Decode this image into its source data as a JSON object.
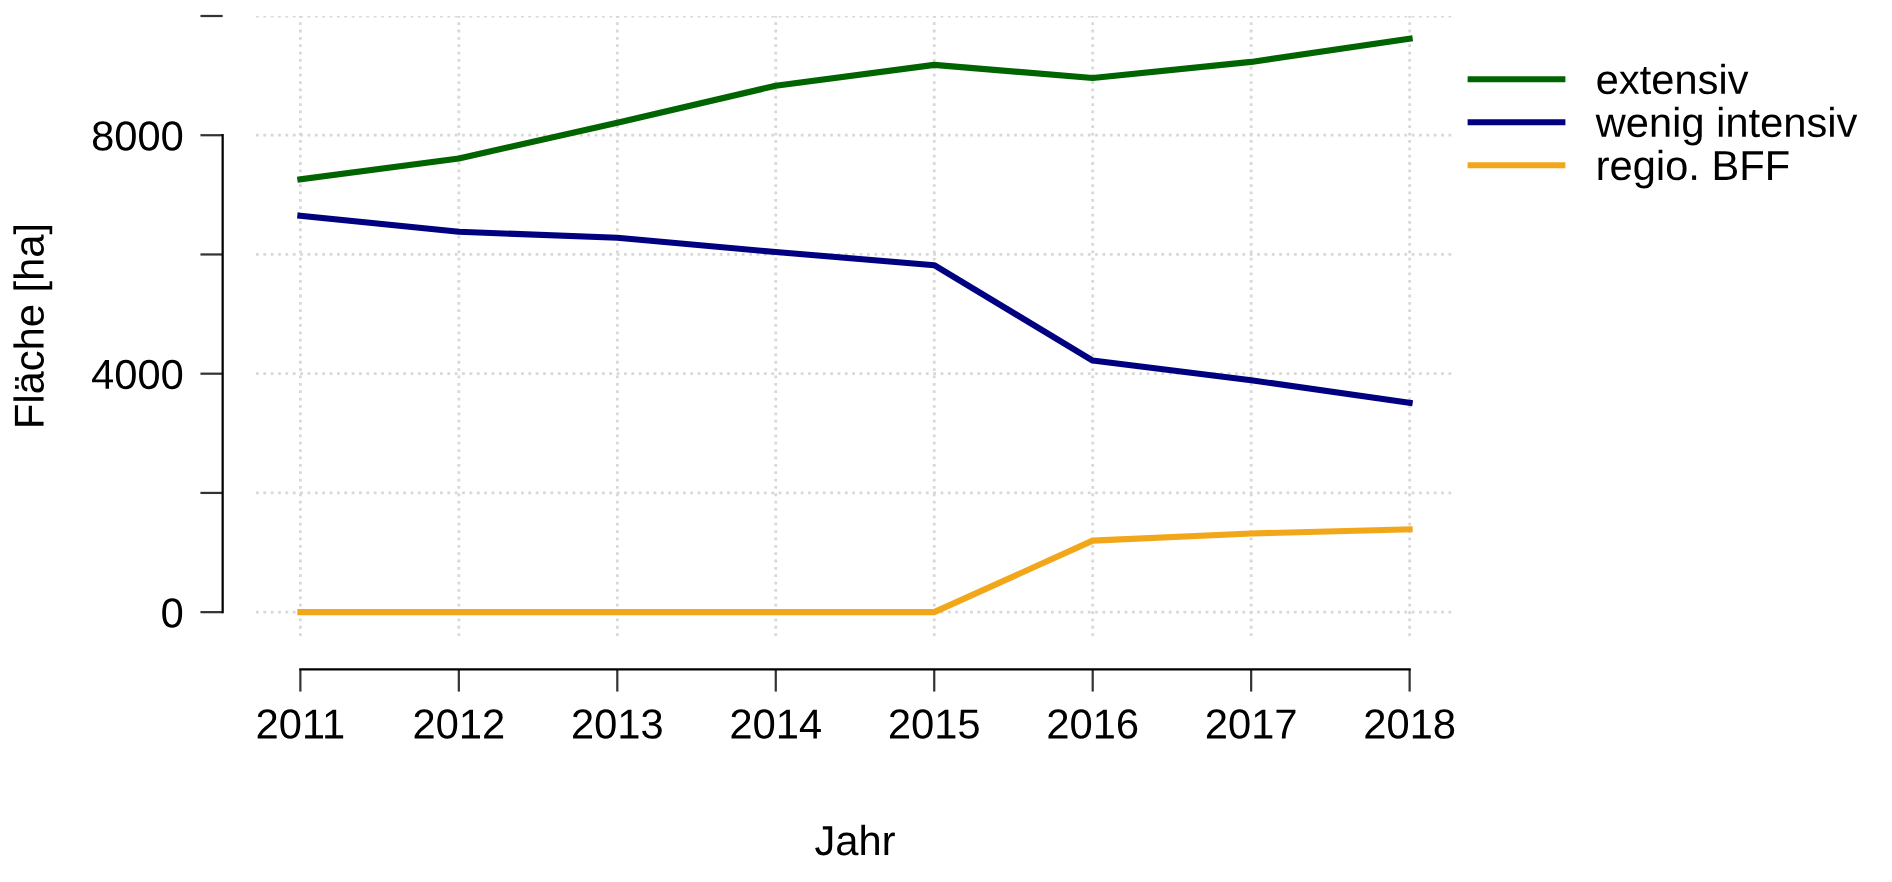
{
  "chart_data": {
    "type": "line",
    "xlabel": "Jahr",
    "ylabel": "Fläche [ha]",
    "x": [
      2011,
      2012,
      2013,
      2014,
      2015,
      2016,
      2017,
      2018
    ],
    "series": [
      {
        "name": "extensiv",
        "color": "#006400",
        "values": [
          7260,
          7610,
          8210,
          8830,
          9180,
          8960,
          9230,
          9620
        ]
      },
      {
        "name": "wenig intensiv",
        "color": "#000080",
        "values": [
          6650,
          6380,
          6280,
          6040,
          5820,
          4220,
          3890,
          3510
        ]
      },
      {
        "name": "regio. BFF",
        "color": "#f2a71b",
        "values": [
          0,
          0,
          0,
          0,
          0,
          1200,
          1320,
          1390
        ]
      }
    ],
    "xlim": [
      2010.72,
      2018.28
    ],
    "ylim": [
      -400,
      10000
    ],
    "xticks": [
      2011,
      2012,
      2013,
      2014,
      2015,
      2016,
      2017,
      2018
    ],
    "yticks": [
      0,
      {
        "value": 2000,
        "label": null
      },
      4000,
      {
        "value": 6000,
        "label": null
      },
      8000,
      {
        "value": 10000,
        "label": null
      }
    ],
    "grid": true,
    "legend": "top right",
    "marker": "none",
    "line_style": "solid"
  }
}
